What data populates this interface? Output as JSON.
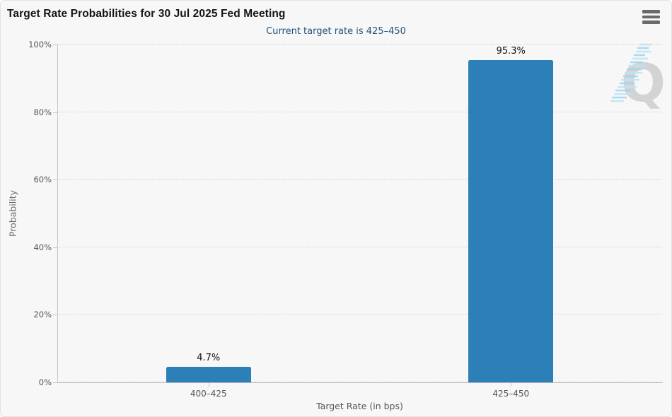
{
  "header": {
    "title": "Target Rate Probabilities for 30 Jul 2025 Fed Meeting",
    "subtitle": "Current target rate is 425–450",
    "menu_icon": "hamburger-icon"
  },
  "chart_data": {
    "type": "bar",
    "title": "Target Rate Probabilities for 30 Jul 2025 Fed Meeting",
    "subtitle": "Current target rate is 425–450",
    "categories": [
      "400–425",
      "425–450"
    ],
    "values": [
      4.7,
      95.3
    ],
    "value_labels": [
      "4.7%",
      "95.3%"
    ],
    "xlabel": "Target Rate (in bps)",
    "ylabel": "Probability",
    "ylim": [
      0,
      100
    ],
    "yticks": [
      0,
      20,
      40,
      60,
      80,
      100
    ],
    "ytick_labels": [
      "0%",
      "20%",
      "40%",
      "60%",
      "80%",
      "100%"
    ],
    "grid": "horizontal dotted",
    "legend": "none",
    "bar_color": "#2d7fb8"
  },
  "watermark": {
    "letter": "Q"
  },
  "colors": {
    "bar": "#2d7fb8",
    "subtitle_text": "#23527c",
    "panel_background": "#f7f7f7",
    "axis_line": "#c6c6c6",
    "gridline": "#d2d2d2",
    "tick_text": "#555555",
    "title_text": "#141414",
    "watermark_q": "#d3d3d3",
    "watermark_stripes": "#a5d8f0"
  }
}
